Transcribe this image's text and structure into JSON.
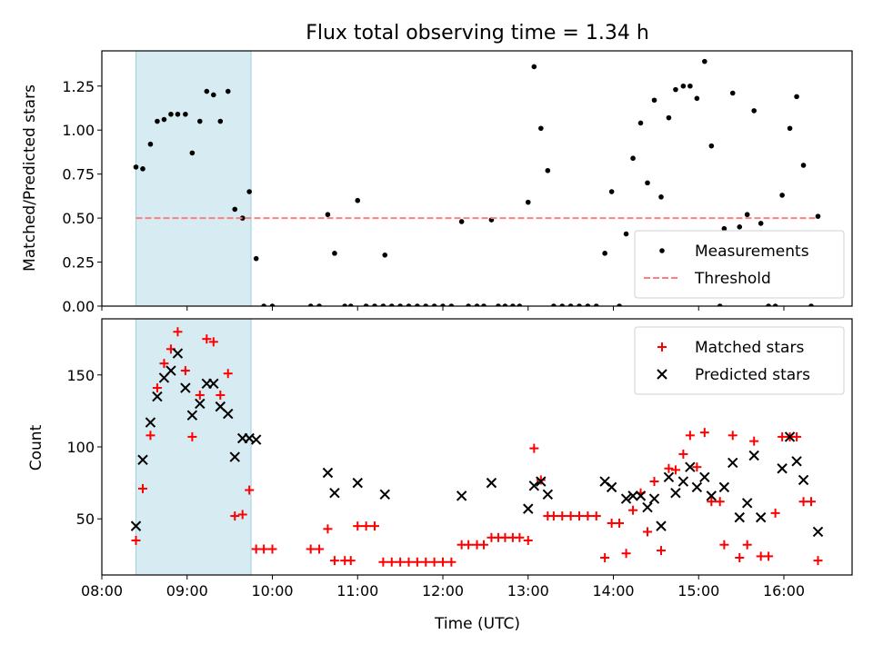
{
  "chart_data": [
    {
      "type": "scatter",
      "title": "Flux total observing time = 1.34 h",
      "xlabel": "",
      "ylabel": "Matched/Predicted stars",
      "xlim": [
        8.0,
        16.8
      ],
      "ylim": [
        0,
        1.45
      ],
      "yticks": [
        0.0,
        0.25,
        0.5,
        0.75,
        1.0,
        1.25
      ],
      "ytick_labels": [
        "0.00",
        "0.25",
        "0.50",
        "0.75",
        "1.00",
        "1.25"
      ],
      "shaded_span": [
        8.4,
        9.75
      ],
      "legend_position": "lower-right",
      "series": [
        {
          "name": "Measurements",
          "marker": "dot",
          "color": "#000000",
          "points": [
            [
              8.4,
              0.79
            ],
            [
              8.48,
              0.78
            ],
            [
              8.57,
              0.92
            ],
            [
              8.65,
              1.05
            ],
            [
              8.73,
              1.06
            ],
            [
              8.81,
              1.09
            ],
            [
              8.89,
              1.09
            ],
            [
              8.98,
              1.09
            ],
            [
              9.06,
              0.87
            ],
            [
              9.15,
              1.05
            ],
            [
              9.23,
              1.22
            ],
            [
              9.31,
              1.2
            ],
            [
              9.39,
              1.05
            ],
            [
              9.48,
              1.22
            ],
            [
              9.56,
              0.55
            ],
            [
              9.65,
              0.5
            ],
            [
              9.73,
              0.65
            ],
            [
              9.81,
              0.27
            ],
            [
              9.9,
              0.0
            ],
            [
              10.0,
              0.0
            ],
            [
              10.45,
              0.0
            ],
            [
              10.55,
              0.0
            ],
            [
              10.65,
              0.52
            ],
            [
              10.73,
              0.3
            ],
            [
              10.85,
              0.0
            ],
            [
              10.92,
              0.0
            ],
            [
              11.0,
              0.6
            ],
            [
              11.1,
              0.0
            ],
            [
              11.2,
              0.0
            ],
            [
              11.3,
              0.0
            ],
            [
              11.32,
              0.29
            ],
            [
              11.4,
              0.0
            ],
            [
              11.5,
              0.0
            ],
            [
              11.6,
              0.0
            ],
            [
              11.7,
              0.0
            ],
            [
              11.8,
              0.0
            ],
            [
              11.9,
              0.0
            ],
            [
              12.0,
              0.0
            ],
            [
              12.1,
              0.0
            ],
            [
              12.22,
              0.48
            ],
            [
              12.3,
              0.0
            ],
            [
              12.4,
              0.0
            ],
            [
              12.48,
              0.0
            ],
            [
              12.57,
              0.49
            ],
            [
              12.65,
              0.0
            ],
            [
              12.73,
              0.0
            ],
            [
              12.82,
              0.0
            ],
            [
              12.9,
              0.0
            ],
            [
              13.0,
              0.59
            ],
            [
              13.07,
              1.36
            ],
            [
              13.15,
              1.01
            ],
            [
              13.23,
              0.77
            ],
            [
              13.3,
              0.0
            ],
            [
              13.4,
              0.0
            ],
            [
              13.5,
              0.0
            ],
            [
              13.6,
              0.0
            ],
            [
              13.7,
              0.0
            ],
            [
              13.8,
              0.0
            ],
            [
              13.9,
              0.3
            ],
            [
              13.98,
              0.65
            ],
            [
              14.07,
              0.0
            ],
            [
              14.15,
              0.41
            ],
            [
              14.23,
              0.84
            ],
            [
              14.32,
              1.04
            ],
            [
              14.4,
              0.7
            ],
            [
              14.48,
              1.17
            ],
            [
              14.56,
              0.62
            ],
            [
              14.65,
              1.07
            ],
            [
              14.73,
              1.23
            ],
            [
              14.82,
              1.25
            ],
            [
              14.9,
              1.25
            ],
            [
              14.98,
              1.18
            ],
            [
              15.07,
              1.39
            ],
            [
              15.15,
              0.91
            ],
            [
              15.25,
              0.0
            ],
            [
              15.3,
              0.44
            ],
            [
              15.4,
              1.21
            ],
            [
              15.48,
              0.45
            ],
            [
              15.57,
              0.52
            ],
            [
              15.65,
              1.11
            ],
            [
              15.73,
              0.47
            ],
            [
              15.82,
              0.0
            ],
            [
              15.9,
              0.0
            ],
            [
              15.98,
              0.63
            ],
            [
              16.07,
              1.01
            ],
            [
              16.15,
              1.19
            ],
            [
              16.23,
              0.8
            ],
            [
              16.32,
              0.0
            ],
            [
              16.4,
              0.51
            ]
          ]
        },
        {
          "name": "Threshold",
          "marker": "dashed-line",
          "color": "#ff7f7f",
          "points": [
            [
              8.4,
              0.5
            ],
            [
              16.4,
              0.5
            ]
          ]
        }
      ]
    },
    {
      "type": "scatter",
      "title": "",
      "xlabel": "Time (UTC)",
      "ylabel": "Count",
      "xlim": [
        8.0,
        16.8
      ],
      "ylim": [
        11,
        189
      ],
      "xticks": [
        8,
        9,
        10,
        11,
        12,
        13,
        14,
        15,
        16
      ],
      "xtick_labels": [
        "08:00",
        "09:00",
        "10:00",
        "11:00",
        "12:00",
        "13:00",
        "14:00",
        "15:00",
        "16:00"
      ],
      "yticks": [
        50,
        100,
        150
      ],
      "ytick_labels": [
        "50",
        "100",
        "150"
      ],
      "shaded_span": [
        8.4,
        9.75
      ],
      "legend_position": "upper-right",
      "series": [
        {
          "name": "Matched stars",
          "marker": "plus",
          "color": "#ff0000",
          "points": [
            [
              8.4,
              35
            ],
            [
              8.48,
              71
            ],
            [
              8.57,
              108
            ],
            [
              8.65,
              141
            ],
            [
              8.73,
              158
            ],
            [
              8.81,
              168
            ],
            [
              8.89,
              180
            ],
            [
              8.98,
              153
            ],
            [
              9.06,
              107
            ],
            [
              9.15,
              136
            ],
            [
              9.23,
              175
            ],
            [
              9.31,
              173
            ],
            [
              9.39,
              136
            ],
            [
              9.48,
              151
            ],
            [
              9.56,
              52
            ],
            [
              9.65,
              53
            ],
            [
              9.73,
              70
            ],
            [
              9.81,
              29
            ],
            [
              9.9,
              29
            ],
            [
              10.0,
              29
            ],
            [
              10.45,
              29
            ],
            [
              10.55,
              29
            ],
            [
              10.65,
              43
            ],
            [
              10.73,
              21
            ],
            [
              10.85,
              21
            ],
            [
              10.92,
              21
            ],
            [
              11.0,
              45
            ],
            [
              11.1,
              45
            ],
            [
              11.2,
              45
            ],
            [
              11.3,
              20
            ],
            [
              11.4,
              20
            ],
            [
              11.5,
              20
            ],
            [
              11.6,
              20
            ],
            [
              11.7,
              20
            ],
            [
              11.8,
              20
            ],
            [
              11.9,
              20
            ],
            [
              12.0,
              20
            ],
            [
              12.1,
              20
            ],
            [
              12.22,
              32
            ],
            [
              12.3,
              32
            ],
            [
              12.4,
              32
            ],
            [
              12.48,
              32
            ],
            [
              12.57,
              37
            ],
            [
              12.65,
              37
            ],
            [
              12.73,
              37
            ],
            [
              12.82,
              37
            ],
            [
              12.9,
              37
            ],
            [
              13.0,
              35
            ],
            [
              13.07,
              99
            ],
            [
              13.15,
              77
            ],
            [
              13.23,
              52
            ],
            [
              13.3,
              52
            ],
            [
              13.4,
              52
            ],
            [
              13.5,
              52
            ],
            [
              13.6,
              52
            ],
            [
              13.7,
              52
            ],
            [
              13.8,
              52
            ],
            [
              13.9,
              23
            ],
            [
              13.98,
              47
            ],
            [
              14.07,
              47
            ],
            [
              14.15,
              26
            ],
            [
              14.23,
              56
            ],
            [
              14.32,
              68
            ],
            [
              14.4,
              41
            ],
            [
              14.48,
              76
            ],
            [
              14.56,
              28
            ],
            [
              14.65,
              85
            ],
            [
              14.73,
              84
            ],
            [
              14.82,
              95
            ],
            [
              14.9,
              108
            ],
            [
              14.98,
              86
            ],
            [
              15.07,
              110
            ],
            [
              15.15,
              62
            ],
            [
              15.25,
              62
            ],
            [
              15.3,
              32
            ],
            [
              15.4,
              108
            ],
            [
              15.48,
              23
            ],
            [
              15.57,
              32
            ],
            [
              15.65,
              104
            ],
            [
              15.73,
              24
            ],
            [
              15.82,
              24
            ],
            [
              15.9,
              54
            ],
            [
              15.98,
              107
            ],
            [
              16.07,
              107
            ],
            [
              16.15,
              107
            ],
            [
              16.23,
              62
            ],
            [
              16.32,
              62
            ],
            [
              16.4,
              21
            ]
          ]
        },
        {
          "name": "Predicted stars",
          "marker": "x",
          "color": "#000000",
          "points": [
            [
              8.4,
              45
            ],
            [
              8.48,
              91
            ],
            [
              8.57,
              117
            ],
            [
              8.65,
              135
            ],
            [
              8.73,
              148
            ],
            [
              8.81,
              153
            ],
            [
              8.89,
              165
            ],
            [
              8.98,
              141
            ],
            [
              9.06,
              122
            ],
            [
              9.15,
              130
            ],
            [
              9.23,
              144
            ],
            [
              9.31,
              144
            ],
            [
              9.39,
              128
            ],
            [
              9.48,
              123
            ],
            [
              9.56,
              93
            ],
            [
              9.65,
              106
            ],
            [
              9.73,
              106
            ],
            [
              9.81,
              105
            ],
            [
              10.65,
              82
            ],
            [
              10.73,
              68
            ],
            [
              11.0,
              75
            ],
            [
              11.32,
              67
            ],
            [
              12.22,
              66
            ],
            [
              12.57,
              75
            ],
            [
              13.0,
              57
            ],
            [
              13.07,
              73
            ],
            [
              13.15,
              76
            ],
            [
              13.23,
              67
            ],
            [
              13.9,
              76
            ],
            [
              13.98,
              72
            ],
            [
              14.15,
              64
            ],
            [
              14.23,
              66
            ],
            [
              14.32,
              66
            ],
            [
              14.4,
              58
            ],
            [
              14.48,
              64
            ],
            [
              14.56,
              45
            ],
            [
              14.65,
              79
            ],
            [
              14.73,
              68
            ],
            [
              14.82,
              76
            ],
            [
              14.9,
              86
            ],
            [
              14.98,
              72
            ],
            [
              15.07,
              79
            ],
            [
              15.15,
              66
            ],
            [
              15.3,
              72
            ],
            [
              15.4,
              89
            ],
            [
              15.48,
              51
            ],
            [
              15.57,
              61
            ],
            [
              15.65,
              94
            ],
            [
              15.73,
              51
            ],
            [
              15.98,
              85
            ],
            [
              16.07,
              107
            ],
            [
              16.15,
              90
            ],
            [
              16.23,
              77
            ],
            [
              16.4,
              41
            ]
          ]
        }
      ]
    }
  ]
}
